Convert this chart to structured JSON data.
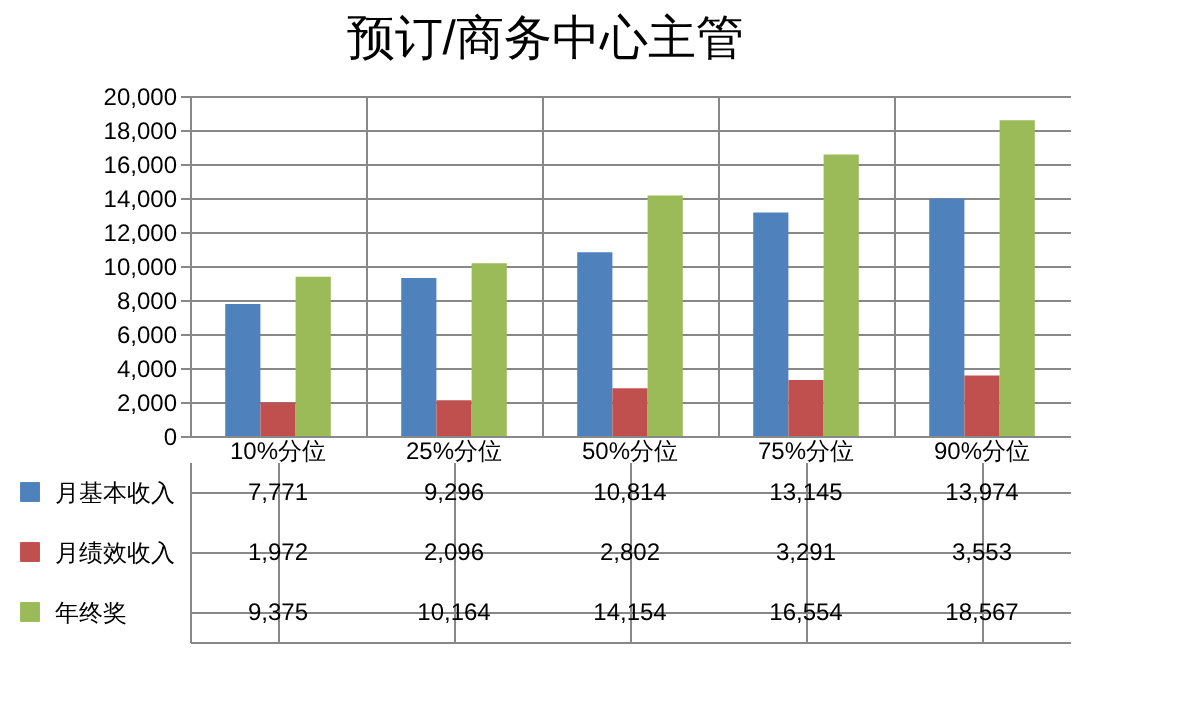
{
  "chart_data": {
    "type": "bar",
    "title": "预订/商务中心主管",
    "categories": [
      "10%分位",
      "25%分位",
      "50%分位",
      "75%分位",
      "90%分位"
    ],
    "series": [
      {
        "name": "月基本收入",
        "color": "#4f81bd",
        "values": [
          7771,
          9296,
          10814,
          13145,
          13974
        ],
        "value_labels": [
          "7,771",
          "9,296",
          "10,814",
          "13,145",
          "13,974"
        ]
      },
      {
        "name": "月绩效收入",
        "color": "#c0504d",
        "values": [
          1972,
          2096,
          2802,
          3291,
          3553
        ],
        "value_labels": [
          "1,972",
          "2,096",
          "2,802",
          "3,291",
          "3,553"
        ]
      },
      {
        "name": "年终奖",
        "color": "#9bbb59",
        "values": [
          9375,
          10164,
          14154,
          16554,
          18567
        ],
        "value_labels": [
          "9,375",
          "10,164",
          "14,154",
          "16,554",
          "18,567"
        ]
      }
    ],
    "ylim": [
      0,
      20000
    ],
    "yticks": [
      0,
      {
        "value": 2000,
        "label": "2,000"
      },
      {
        "value": 4000,
        "label": "4,000"
      },
      {
        "value": 6000,
        "label": "6,000"
      },
      {
        "value": 8000,
        "label": "8,000"
      },
      {
        "value": 10000,
        "label": "10,000"
      },
      {
        "value": 12000,
        "label": "12,000"
      },
      {
        "value": 14000,
        "label": "14,000"
      },
      {
        "value": 16000,
        "label": "16,000"
      },
      {
        "value": 18000,
        "label": "18,000"
      },
      {
        "value": 20000,
        "label": "20,000"
      }
    ],
    "grid": "y",
    "legend": "bottom"
  }
}
